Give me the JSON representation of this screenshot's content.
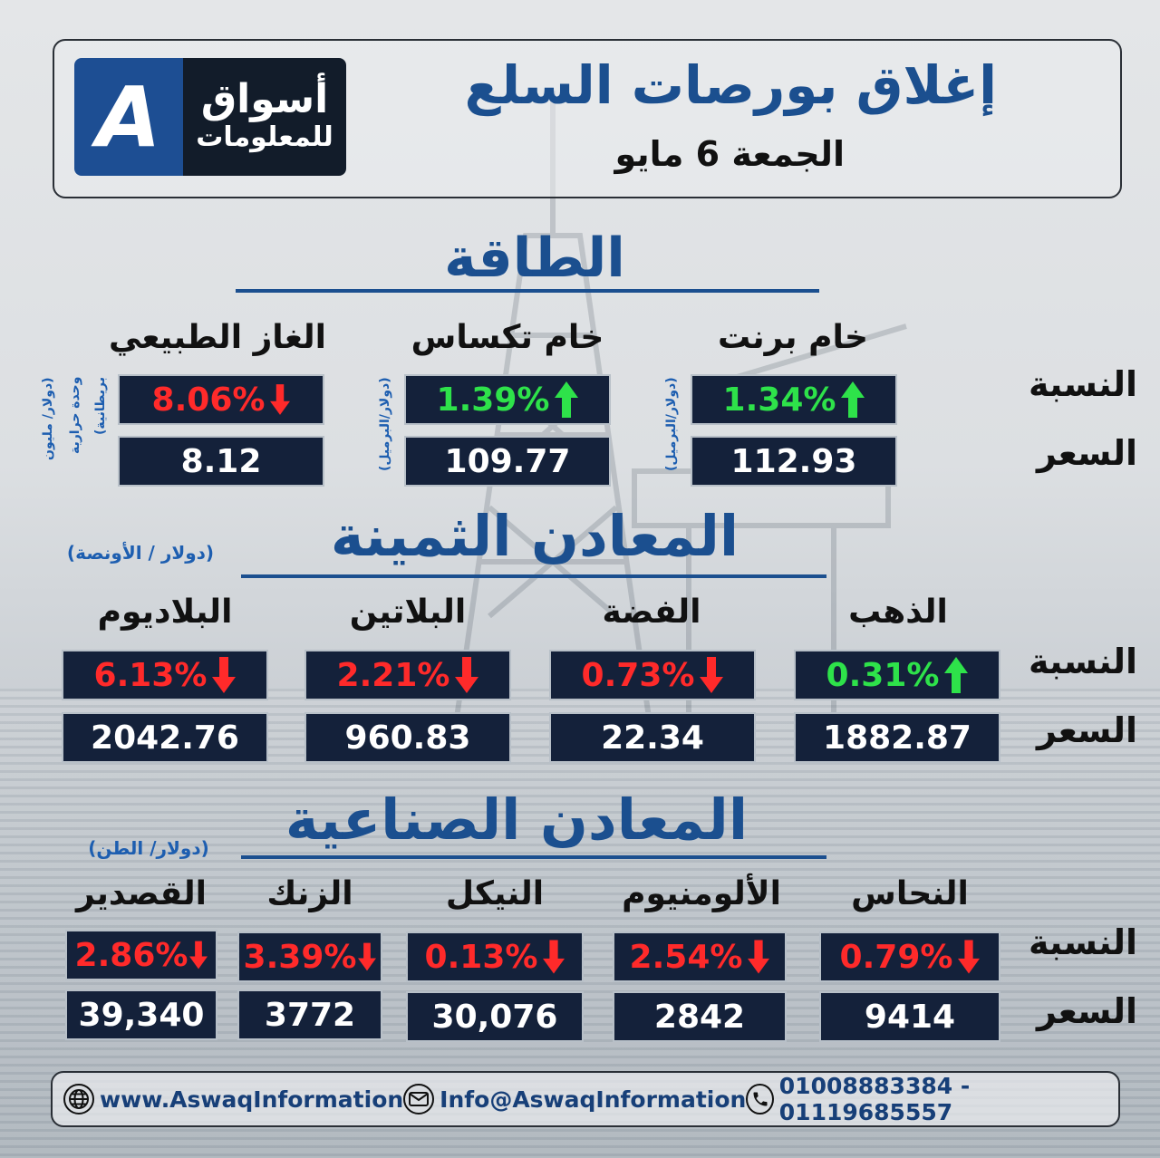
{
  "header": {
    "title": "إغلاق بورصات السلع",
    "date": "الجمعة  6 مايو",
    "logo": {
      "line1": "أسواق",
      "line2": "للمعلومات",
      "mark": "A"
    }
  },
  "labels": {
    "pct": "النسبة",
    "price": "السعر"
  },
  "energy": {
    "title": "الطاقة",
    "items": [
      {
        "name": "خام برنت",
        "pct": "1.34%",
        "dir": "up",
        "price": "112.93",
        "unit": "(دولار/البرميل)"
      },
      {
        "name": "خام تكساس",
        "pct": "1.39%",
        "dir": "up",
        "price": "109.77",
        "unit": "(دولار/البرميل)"
      },
      {
        "name": "الغاز الطبيعي",
        "pct": "8.06%",
        "dir": "down",
        "price": "8.12",
        "unit1": "(دولار/ مليون",
        "unit2": "وحدة حرارية",
        "unit3": "بريطانية)"
      }
    ]
  },
  "precious": {
    "title": "المعادن الثمينة",
    "unit": "(دولار / الأونصة)",
    "items": [
      {
        "name": "الذهب",
        "pct": "0.31%",
        "dir": "up",
        "price": "1882.87"
      },
      {
        "name": "الفضة",
        "pct": "0.73%",
        "dir": "down",
        "price": "22.34"
      },
      {
        "name": "البلاتين",
        "pct": "2.21%",
        "dir": "down",
        "price": "960.83"
      },
      {
        "name": "البلاديوم",
        "pct": "6.13%",
        "dir": "down",
        "price": "2042.76"
      }
    ]
  },
  "industrial": {
    "title": "المعادن الصناعية",
    "unit": "(دولار/ الطن)",
    "items": [
      {
        "name": "النحاس",
        "pct": "0.79%",
        "dir": "down",
        "price": "9414"
      },
      {
        "name": "الألومنيوم",
        "pct": "2.54%",
        "dir": "down",
        "price": "2842"
      },
      {
        "name": "النيكل",
        "pct": "0.13%",
        "dir": "down",
        "price": "30,076"
      },
      {
        "name": "الزنك",
        "pct": "3.39%",
        "dir": "down",
        "price": "3772"
      },
      {
        "name": "القصدير",
        "pct": "2.86%",
        "dir": "down",
        "price": "39,340"
      }
    ]
  },
  "footer": {
    "website": "www.AswaqInformation",
    "email": "Info@AswaqInformation",
    "phone": "01008883384 - 01119685557"
  },
  "colors": {
    "up": "#2ee24a",
    "down": "#ff2a2a",
    "brand": "#1b4f8f",
    "box": "#14213a"
  }
}
